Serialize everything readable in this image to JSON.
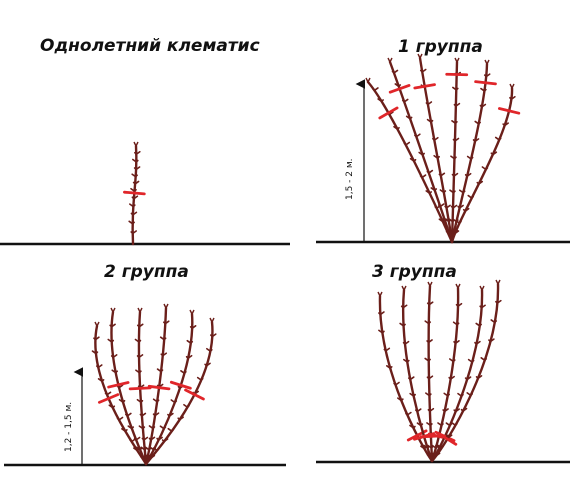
{
  "panels": {
    "annual": {
      "title": "Однолетний клематис"
    },
    "group1": {
      "title": "1 группа",
      "height_label": "1,5 - 2 м."
    },
    "group2": {
      "title": "2 группа",
      "height_label": "1,2 - 1,5 м."
    },
    "group3": {
      "title": "3 группа"
    }
  },
  "colors": {
    "stem": "#6b1f1a",
    "cut": "#e0262a",
    "ground": "#111111",
    "text": "#111111"
  }
}
